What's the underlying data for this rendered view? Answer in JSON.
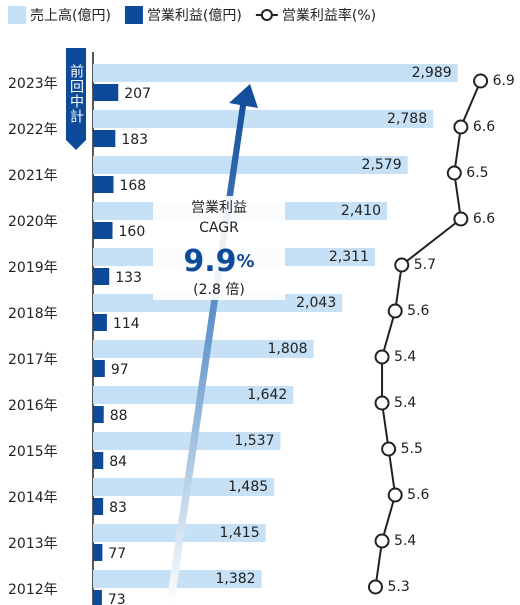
{
  "chart_data": {
    "type": "bar",
    "orientation": "horizontal",
    "categories": [
      "2023年",
      "2022年",
      "2021年",
      "2020年",
      "2019年",
      "2018年",
      "2017年",
      "2016年",
      "2015年",
      "2014年",
      "2013年",
      "2012年"
    ],
    "xlim": [
      0,
      3500
    ],
    "x2lim": [
      1,
      7.5
    ],
    "series": [
      {
        "name": "売上高(億円)",
        "color": "#c6e0f5",
        "values": [
          2989,
          2788,
          2579,
          2410,
          2311,
          2043,
          1808,
          1642,
          1537,
          1485,
          1415,
          1382
        ],
        "value_labels": [
          "2,989",
          "2,788",
          "2,579",
          "2,410",
          "2,311",
          "2,043",
          "1,808",
          "1,642",
          "1,537",
          "1,485",
          "1,415",
          "1,382"
        ]
      },
      {
        "name": "営業利益(億円)",
        "color": "#0d4a9a",
        "values": [
          207,
          183,
          168,
          160,
          133,
          114,
          97,
          88,
          84,
          83,
          77,
          73
        ]
      },
      {
        "name": "営業利益率(%)",
        "color": "#222222",
        "type": "line",
        "axis": "x2",
        "values": [
          6.9,
          6.6,
          6.5,
          6.6,
          5.7,
          5.6,
          5.4,
          5.4,
          5.5,
          5.6,
          5.4,
          5.3
        ]
      }
    ],
    "annotations": {
      "title": "営業利益",
      "sub": "CAGR",
      "value": "9.9",
      "unit": "%",
      "ratio": "(2.8 倍)",
      "plan": "前回中計"
    }
  }
}
